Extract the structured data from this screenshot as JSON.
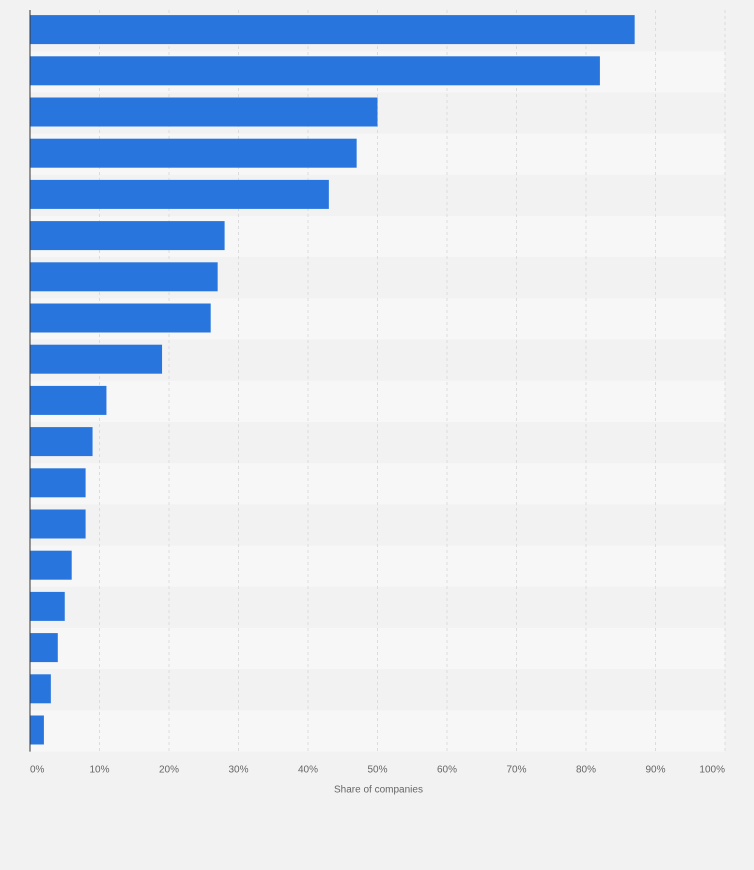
{
  "chart_data": {
    "type": "bar",
    "orientation": "horizontal",
    "categories": [
      "",
      "",
      "",
      "",
      "",
      "",
      "",
      "",
      "",
      "",
      "",
      "",
      "",
      "",
      "",
      "",
      "",
      ""
    ],
    "values": [
      87,
      82,
      50,
      47,
      43,
      28,
      27,
      26,
      19,
      11,
      9,
      8,
      8,
      6,
      5,
      4,
      3,
      2
    ],
    "title": "",
    "xlabel": "Share of companies",
    "ylabel": "",
    "xlim": [
      0,
      100
    ],
    "xticks": [
      0,
      10,
      20,
      30,
      40,
      50,
      60,
      70,
      80,
      90,
      100
    ],
    "xtick_labels": [
      "0%",
      "10%",
      "20%",
      "30%",
      "40%",
      "50%",
      "60%",
      "70%",
      "80%",
      "90%",
      "100%"
    ],
    "grid": true,
    "colors": {
      "bar": "#2876dd",
      "background": "#f2f2f2",
      "band_light": "#f7f7f7",
      "band_dark": "#f2f2f2",
      "grid": "#dcdcdc",
      "axis": "#333333"
    }
  }
}
